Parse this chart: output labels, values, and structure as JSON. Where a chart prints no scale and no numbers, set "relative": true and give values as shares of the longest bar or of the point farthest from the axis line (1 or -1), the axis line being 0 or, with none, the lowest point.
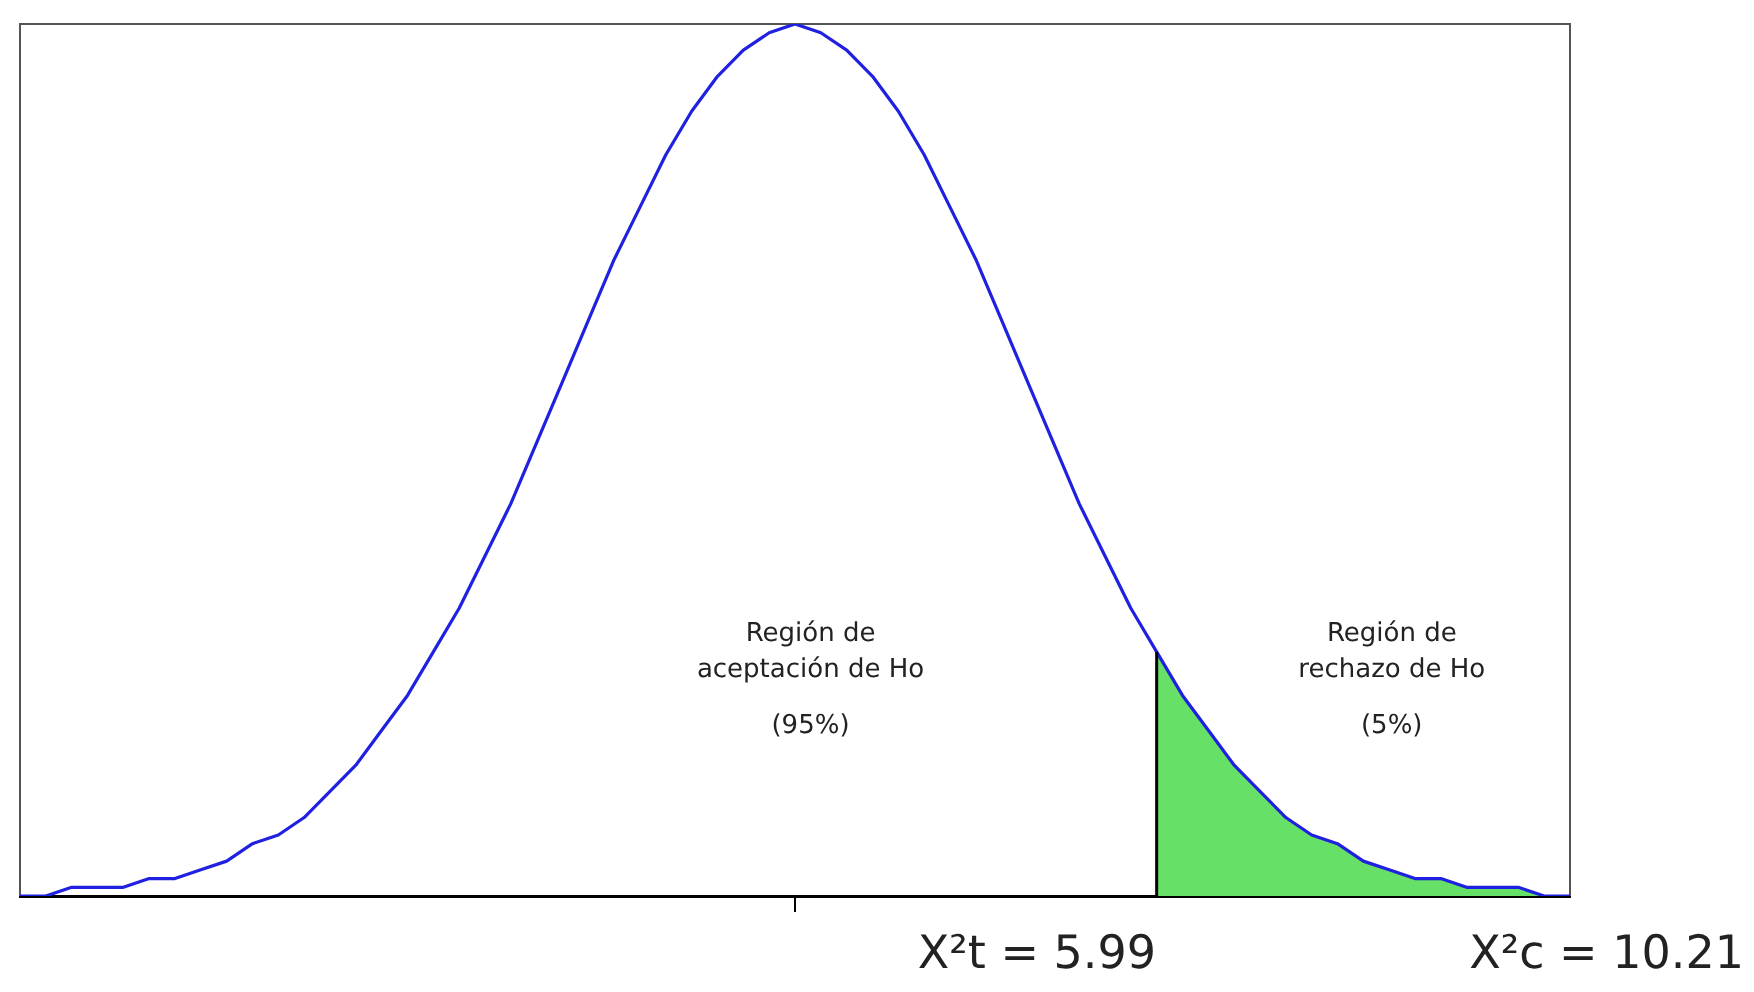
{
  "chart_data": {
    "type": "line",
    "relative": true,
    "legend": false,
    "grid": false,
    "marker": "none",
    "categories": [
      null,
      null,
      null,
      null,
      null,
      null,
      null,
      null,
      null,
      null,
      null,
      null,
      null,
      null,
      null,
      null,
      null,
      null,
      null,
      null,
      null,
      null,
      null,
      null,
      null,
      null,
      null,
      null,
      null,
      null,
      null,
      null,
      null,
      null,
      null,
      null,
      null,
      null,
      null,
      null,
      null,
      null,
      null,
      null,
      null,
      null,
      null,
      null,
      null,
      null,
      null,
      null,
      null,
      null,
      null,
      null,
      null,
      null,
      null,
      null,
      null
    ],
    "series": [
      {
        "color": "#2020e0",
        "values": [
          0,
          0,
          0.01,
          0.01,
          0.01,
          0.02,
          0.02,
          0.03,
          0.04,
          0.06,
          0.07,
          0.09,
          0.12,
          0.15,
          0.19,
          0.23,
          0.28,
          0.33,
          0.39,
          0.45,
          0.52,
          0.59,
          0.66,
          0.73,
          0.79,
          0.85,
          0.9,
          0.94,
          0.97,
          0.99,
          1,
          0.99,
          0.97,
          0.94,
          0.9,
          0.85,
          0.79,
          0.73,
          0.66,
          0.59,
          0.52,
          0.45,
          0.39,
          0.33,
          0.28,
          0.23,
          0.19,
          0.15,
          0.12,
          0.09,
          0.07,
          0.06,
          0.04,
          0.03,
          0.02,
          0.02,
          0.01,
          0.01,
          0.01,
          0,
          0
        ]
      },
      {
        "type": "area",
        "color": "#66e066",
        "values": [
          null,
          null,
          null,
          null,
          null,
          null,
          null,
          null,
          null,
          null,
          null,
          null,
          null,
          null,
          null,
          null,
          null,
          null,
          null,
          null,
          null,
          null,
          null,
          null,
          null,
          null,
          null,
          null,
          null,
          null,
          null,
          null,
          null,
          null,
          null,
          null,
          null,
          null,
          null,
          null,
          null,
          null,
          null,
          null,
          0.28,
          0.23,
          0.19,
          0.15,
          0.12,
          0.09,
          0.07,
          0.06,
          0.04,
          0.03,
          0.02,
          0.02,
          0.01,
          0.01,
          0.01,
          0,
          0
        ]
      }
    ],
    "annotations": [
      "Región de\naceptación de Ho\n(95%)",
      "Región de\nrechazo de Ho\n(5%)",
      "X²t = 5.99",
      "X²c = 10.21"
    ]
  }
}
